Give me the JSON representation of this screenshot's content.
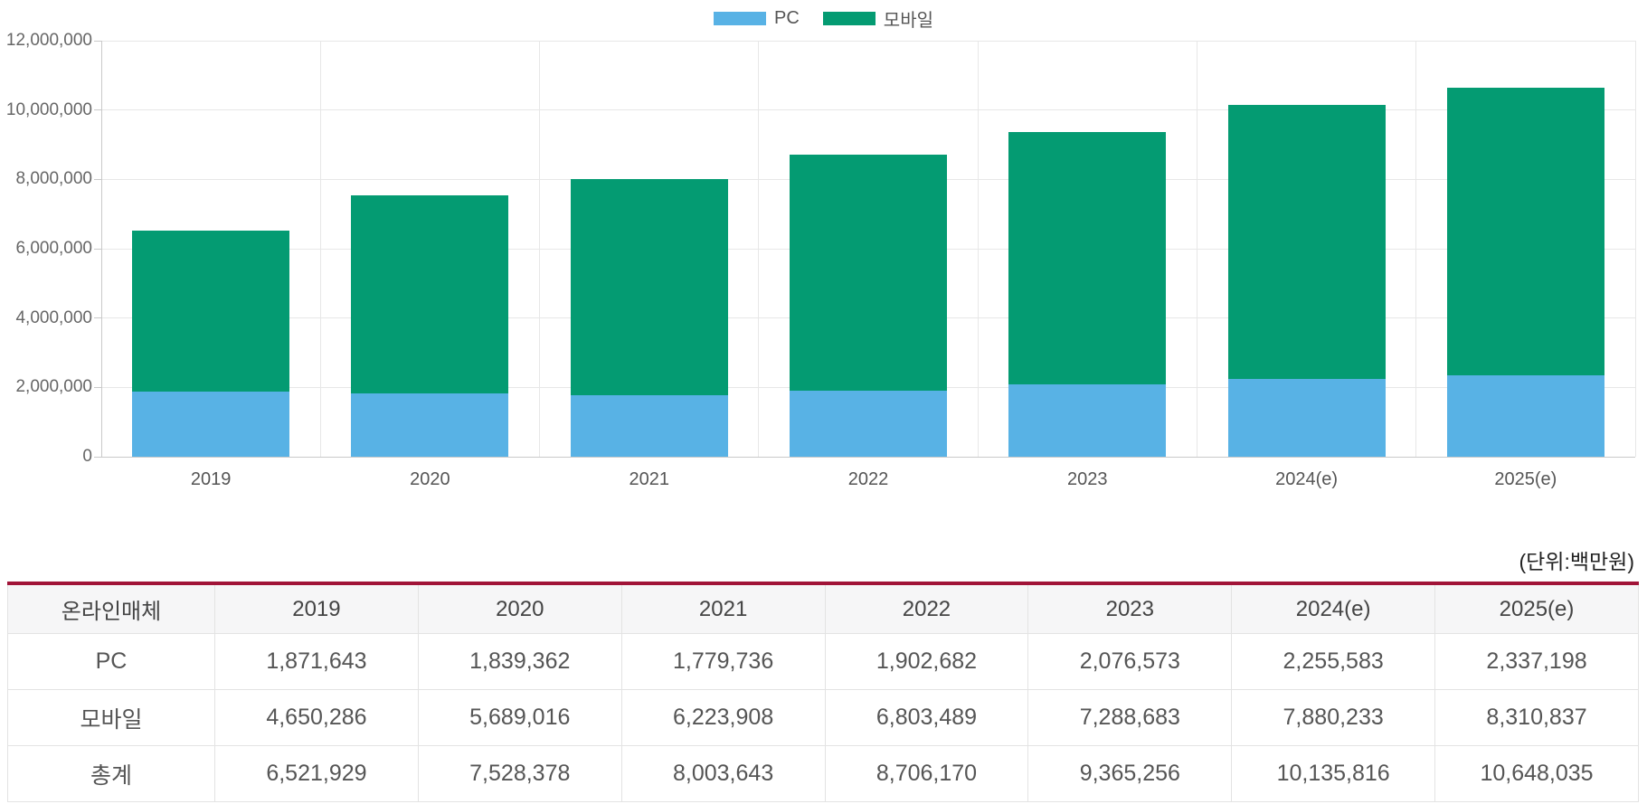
{
  "unit_note": "(단위:백만원)",
  "colors": {
    "pc_blue": "#58B2E5",
    "mobile_green": "#049B72",
    "table_top_line": "#A11438",
    "gridline": "#e7e7e7",
    "axis": "#c9c9c9"
  },
  "chart_data": {
    "type": "bar",
    "stacked": true,
    "legend_position": "top",
    "grid": true,
    "categories": [
      "2019",
      "2020",
      "2021",
      "2022",
      "2023",
      "2024(e)",
      "2025(e)"
    ],
    "series": [
      {
        "name": "PC",
        "color": "#58B2E5",
        "values": [
          1871643,
          1839362,
          1779736,
          1902682,
          2076573,
          2255583,
          2337198
        ]
      },
      {
        "name": "모바일",
        "color": "#049B72",
        "values": [
          4650286,
          5689016,
          6223908,
          6803489,
          7288683,
          7880233,
          8310837
        ]
      }
    ],
    "totals": [
      6521929,
      7528378,
      8003643,
      8706170,
      9365256,
      10135816,
      10648035
    ],
    "ylim": [
      0,
      12000000
    ],
    "yticks": [
      {
        "value": 0,
        "label": "0"
      },
      {
        "value": 2000000,
        "label": "2,000,000"
      },
      {
        "value": 4000000,
        "label": "4,000,000"
      },
      {
        "value": 6000000,
        "label": "6,000,000"
      },
      {
        "value": 8000000,
        "label": "8,000,000"
      },
      {
        "value": 10000000,
        "label": "10,000,000"
      },
      {
        "value": 12000000,
        "label": "12,000,000"
      }
    ]
  },
  "table": {
    "headers": [
      "온라인매체",
      "2019",
      "2020",
      "2021",
      "2022",
      "2023",
      "2024(e)",
      "2025(e)"
    ],
    "rows": [
      {
        "label": "PC",
        "values": [
          "1,871,643",
          "1,839,362",
          "1,779,736",
          "1,902,682",
          "2,076,573",
          "2,255,583",
          "2,337,198"
        ]
      },
      {
        "label": "모바일",
        "values": [
          "4,650,286",
          "5,689,016",
          "6,223,908",
          "6,803,489",
          "7,288,683",
          "7,880,233",
          "8,310,837"
        ]
      },
      {
        "label": "총계",
        "values": [
          "6,521,929",
          "7,528,378",
          "8,003,643",
          "8,706,170",
          "9,365,256",
          "10,135,816",
          "10,648,035"
        ]
      }
    ]
  }
}
